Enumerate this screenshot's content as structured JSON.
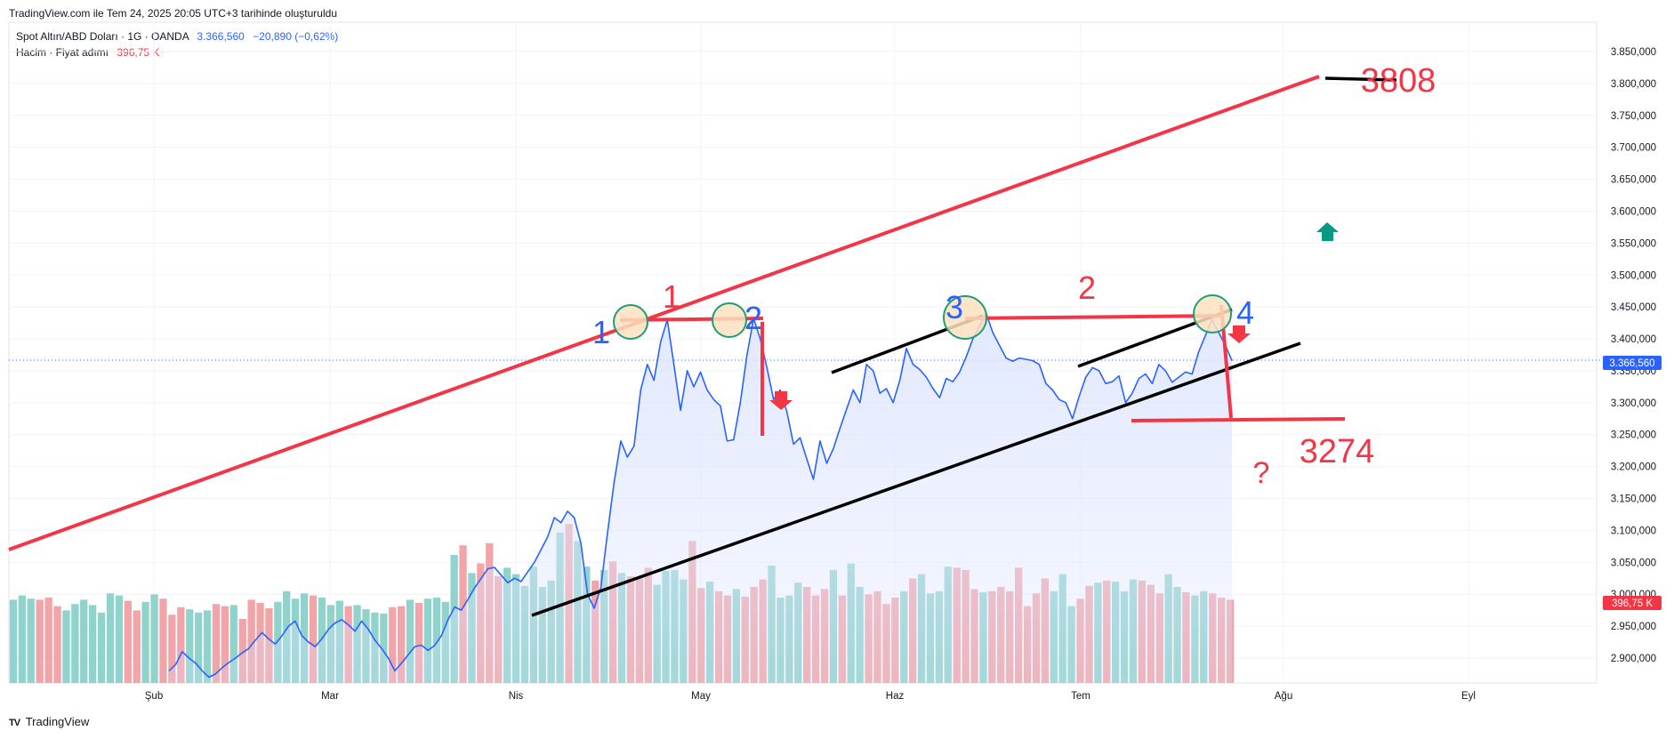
{
  "header": {
    "attribution": "TradingView.com ile Tem 24, 2025 20:05 UTC+3 tarihinde oluşturuldu",
    "symbol_label": "Spot Altın/ABD Doları · 1G · OANDA",
    "price": "3.366,560",
    "change": "−20,890 (−0,62%)",
    "volume_label": "Hacim · Fiyat adımı",
    "volume_value": "396,75 K"
  },
  "footer": {
    "brand": "TradingView",
    "logo_glyph": "TV"
  },
  "colors": {
    "line": "#2962ff",
    "area": "#dfe6ff",
    "vol_up": "#8fd3cc",
    "vol_down": "#f2a5a8",
    "annot_red": "#f23645",
    "annot_blue": "#2962ff",
    "annot_green": "#089981",
    "black": "#000000",
    "circle_fill": "#fbe0c0",
    "circle_stroke": "#1f9d74"
  },
  "price_tags": {
    "last_price": "3.366,560",
    "last_volume": "396,75 K"
  },
  "annotations": {
    "labels": [
      {
        "text": "1",
        "color": "red"
      },
      {
        "text": "1",
        "color": "blue"
      },
      {
        "text": "2",
        "color": "blue"
      },
      {
        "text": "3",
        "color": "blue"
      },
      {
        "text": "2",
        "color": "red"
      },
      {
        "text": "4",
        "color": "blue"
      },
      {
        "text": "3808",
        "color": "red"
      },
      {
        "text": "3274",
        "color": "red"
      },
      {
        "text": "?",
        "color": "red"
      }
    ]
  },
  "chart_data": {
    "type": "line",
    "title": "",
    "x_ticks": [
      "Şub",
      "Mar",
      "Nis",
      "May",
      "Haz",
      "Tem",
      "Ağu",
      "Eyl"
    ],
    "y_ticks": [
      "3.850,000",
      "3.800,000",
      "3.750,000",
      "3.700,000",
      "3.650,000",
      "3.600,000",
      "3.550,000",
      "3.500,000",
      "3.450,000",
      "3.400,000",
      "3.350,000",
      "3.300,000",
      "3.250,000",
      "3.200,000",
      "3.150,000",
      "3.100,000",
      "3.050,000",
      "3.000,000",
      "2.950,000",
      "2.900,000"
    ],
    "ylim": [
      2870,
      3875
    ],
    "series": [
      {
        "kind": "area-line",
        "values": [
          2880,
          2890,
          2910,
          2900,
          2892,
          2880,
          2870,
          2875,
          2885,
          2893,
          2900,
          2908,
          2915,
          2928,
          2940,
          2930,
          2922,
          2935,
          2950,
          2958,
          2935,
          2925,
          2918,
          2930,
          2945,
          2955,
          2960,
          2952,
          2942,
          2958,
          2945,
          2928,
          2915,
          2900,
          2880,
          2892,
          2905,
          2918,
          2920,
          2912,
          2920,
          2935,
          2960,
          2980,
          2975,
          2992,
          3010,
          3025,
          3040,
          3042,
          3030,
          3018,
          3025,
          3020,
          3035,
          3050,
          3070,
          3090,
          3120,
          3112,
          3130,
          3120,
          3080,
          3000,
          2978,
          3010,
          3095,
          3175,
          3240,
          3215,
          3232,
          3320,
          3360,
          3335,
          3395,
          3430,
          3360,
          3288,
          3350,
          3325,
          3348,
          3320,
          3305,
          3295,
          3240,
          3242,
          3300,
          3375,
          3432,
          3400,
          3355,
          3305,
          3320,
          3286,
          3235,
          3245,
          3212,
          3180,
          3240,
          3205,
          3228,
          3260,
          3290,
          3320,
          3300,
          3360,
          3350,
          3315,
          3322,
          3300,
          3335,
          3385,
          3360,
          3352,
          3340,
          3322,
          3308,
          3338,
          3333,
          3348,
          3372,
          3400,
          3420,
          3440,
          3410,
          3390,
          3370,
          3365,
          3370,
          3368,
          3366,
          3360,
          3330,
          3320,
          3305,
          3300,
          3275,
          3310,
          3340,
          3355,
          3350,
          3330,
          3333,
          3342,
          3300,
          3315,
          3338,
          3345,
          3330,
          3360,
          3350,
          3332,
          3340,
          3348,
          3345,
          3380,
          3405,
          3430,
          3410,
          3390,
          3366
        ]
      },
      {
        "kind": "volume",
        "values": [
          0.78,
          0.82,
          0.79,
          0.78,
          0.8,
          0.72,
          0.68,
          0.74,
          0.78,
          0.73,
          0.66,
          0.84,
          0.82,
          0.77,
          0.68,
          0.76,
          0.83,
          0.79,
          0.64,
          0.71,
          0.69,
          0.66,
          0.68,
          0.74,
          0.72,
          0.73,
          0.6,
          0.78,
          0.75,
          0.7,
          0.76,
          0.86,
          0.79,
          0.84,
          0.82,
          0.8,
          0.73,
          0.77,
          0.72,
          0.73,
          0.69,
          0.66,
          0.65,
          0.71,
          0.72,
          0.78,
          0.75,
          0.79,
          0.8,
          0.76,
          1.2,
          1.29,
          1.03,
          1.12,
          1.31,
          1.0,
          1.08,
          1.02,
          0.91,
          1.09,
          0.9,
          0.96,
          1.41,
          1.49,
          1.33,
          1.09,
          0.96,
          1.06,
          1.14,
          1.03,
          1.0,
          0.98,
          1.08,
          0.92,
          1.05,
          1.06,
          0.97,
          1.33,
          0.89,
          0.95,
          0.86,
          0.82,
          0.88,
          0.81,
          0.9,
          0.97,
          1.1,
          0.8,
          0.82,
          0.94,
          0.9,
          0.82,
          0.88,
          1.06,
          0.82,
          1.12,
          0.9,
          0.83,
          0.86,
          0.74,
          0.8,
          0.86,
          0.98,
          1.02,
          0.84,
          0.86,
          1.09,
          1.08,
          1.06,
          0.88,
          0.85,
          0.86,
          0.9,
          0.86,
          1.08,
          0.72,
          0.84,
          0.98,
          0.86,
          1.02,
          0.72,
          0.79,
          0.91,
          0.94,
          0.96,
          0.95,
          0.86,
          0.97,
          0.96,
          0.92,
          0.84,
          1.02,
          0.9,
          0.85,
          0.82,
          0.86,
          0.84,
          0.8,
          0.78
        ]
      }
    ]
  }
}
